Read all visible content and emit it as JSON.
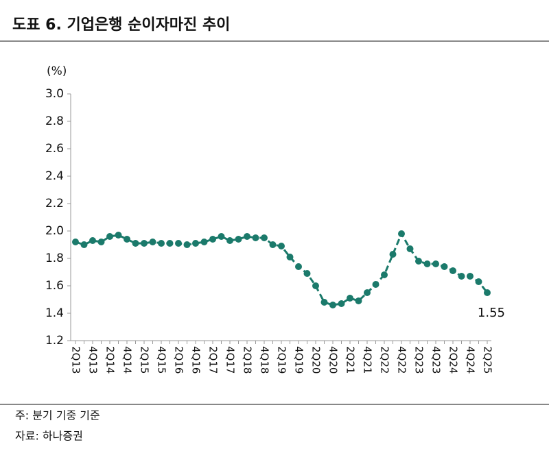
{
  "chart_data": {
    "type": "line",
    "title": "도표 6. 기업은행 순이자마진 추이",
    "y_unit": "(%)",
    "categories": [
      "2Q13",
      null,
      "4Q13",
      null,
      "2Q14",
      null,
      "4Q14",
      null,
      "2Q15",
      null,
      "4Q15",
      null,
      "2Q16",
      null,
      "4Q16",
      null,
      "2Q17",
      null,
      "4Q17",
      null,
      "2Q18",
      null,
      "4Q18",
      null,
      "2Q19",
      null,
      "4Q19",
      null,
      "2Q20",
      null,
      "4Q20",
      null,
      "2Q21",
      null,
      "4Q21",
      null,
      "2Q22",
      null,
      "4Q22",
      null,
      "2Q23",
      null,
      "4Q23",
      null,
      "2Q24",
      null,
      "4Q24",
      null,
      "2Q25"
    ],
    "series": [
      {
        "name": "순이자마진",
        "color": "#1b7a6b",
        "values": [
          1.92,
          1.9,
          1.93,
          1.92,
          1.96,
          1.97,
          1.94,
          1.91,
          1.91,
          1.92,
          1.91,
          1.91,
          1.91,
          1.9,
          1.91,
          1.92,
          1.94,
          1.96,
          1.93,
          1.94,
          1.96,
          1.95,
          1.95,
          1.9,
          1.89,
          1.81,
          1.74,
          1.69,
          1.6,
          1.48,
          1.46,
          1.47,
          1.51,
          1.49,
          1.55,
          1.61,
          1.68,
          1.83,
          1.98,
          1.87,
          1.78,
          1.76,
          1.76,
          1.74,
          1.71,
          1.67,
          1.67,
          1.63,
          1.55
        ]
      }
    ],
    "ylim": [
      1.2,
      3.0
    ],
    "yticks": [
      {
        "value": 1.2,
        "label": "1.2"
      },
      1.4,
      1.6,
      1.8,
      {
        "value": 2,
        "label": "2.0"
      },
      2.2,
      2.4,
      2.6,
      2.8,
      {
        "value": 3,
        "label": "3.0"
      }
    ],
    "grid": false,
    "notes": [
      "주: 분기 기중 기준",
      "자료: 하나증권"
    ]
  }
}
